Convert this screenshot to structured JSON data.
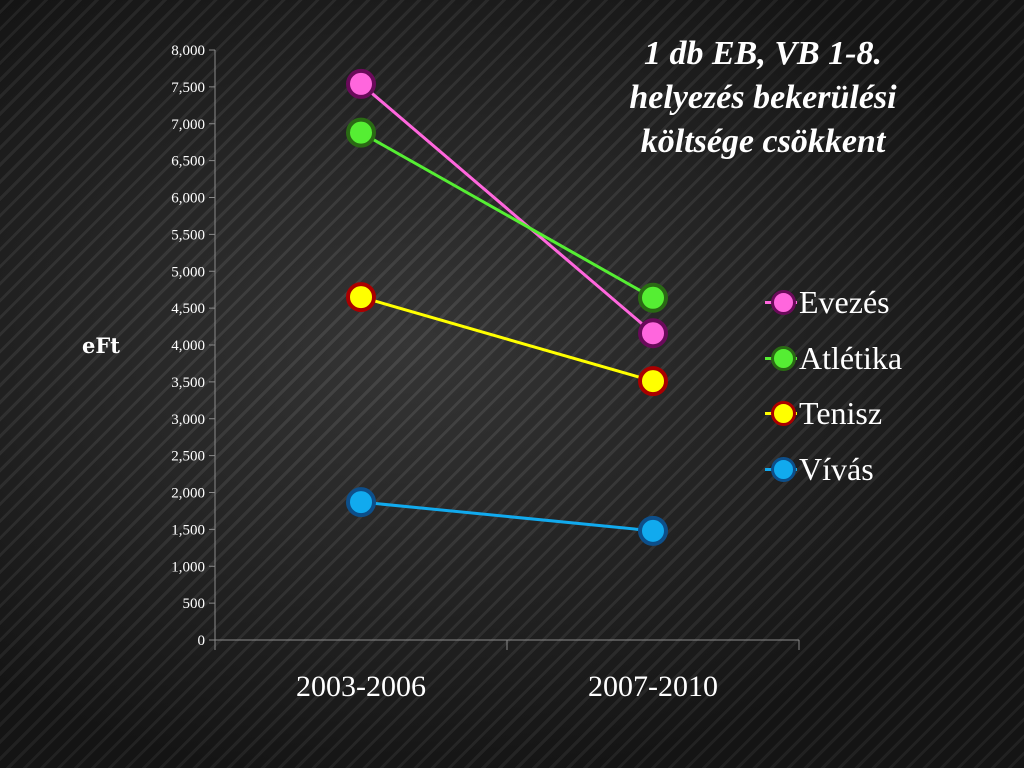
{
  "title_lines": [
    "1 db EB, VB 1-8.",
    "helyezés bekerülési",
    "költsége csökkent"
  ],
  "chart_data": {
    "type": "line",
    "title": "1 db EB, VB 1-8. helyezés bekerülési költsége csökkent",
    "xlabel": "",
    "ylabel": "eFt",
    "categories": [
      "2003-2006",
      "2007-2010"
    ],
    "ylim": [
      0,
      8000
    ],
    "yticks": [
      0,
      500,
      1000,
      1500,
      2000,
      2500,
      3000,
      3500,
      4000,
      4500,
      5000,
      5500,
      6000,
      6500,
      7000,
      7500,
      8000
    ],
    "ytick_labels": [
      "0",
      "500",
      "1,000",
      "1,500",
      "2,000",
      "2,500",
      "3,000",
      "3,500",
      "4,000",
      "4,500",
      "5,000",
      "5,500",
      "6,000",
      "6,500",
      "7,000",
      "7,500",
      "8,000"
    ],
    "grid": false,
    "legend_position": "right",
    "series": [
      {
        "name": "Evezés",
        "values": [
          7540,
          4160
        ],
        "color": "#ff66dd",
        "border": "#6a0a5a"
      },
      {
        "name": "Atlétika",
        "values": [
          6880,
          4640
        ],
        "color": "#55ee33",
        "border": "#2a6a14"
      },
      {
        "name": "Tenisz",
        "values": [
          4650,
          3510
        ],
        "color": "#ffff00",
        "border": "#aa0000"
      },
      {
        "name": "Vívás",
        "values": [
          1870,
          1480
        ],
        "color": "#11aaee",
        "border": "#0d4f8a"
      }
    ]
  }
}
